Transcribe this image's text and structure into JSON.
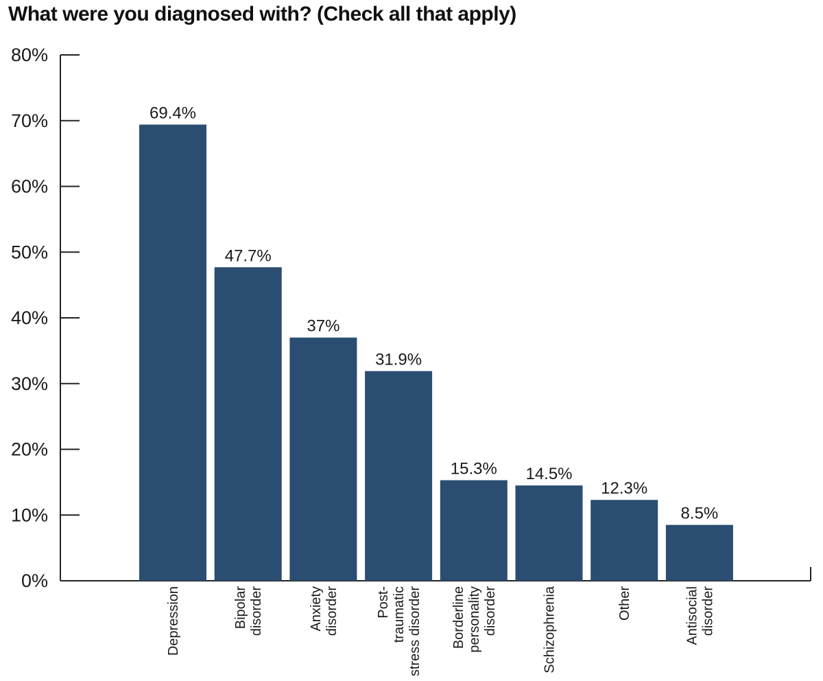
{
  "chart_data": {
    "type": "bar",
    "title": "What were you diagnosed with? (Check all that apply)",
    "xlabel": "",
    "ylabel": "",
    "ylim": [
      0,
      80
    ],
    "yticks": [
      "0%",
      "10%",
      "20%",
      "30%",
      "40%",
      "50%",
      "60%",
      "70%",
      "80%"
    ],
    "grid": false,
    "categories": [
      [
        "Depression"
      ],
      [
        "Bipolar",
        "disorder"
      ],
      [
        "Anxiety",
        "disorder"
      ],
      [
        "Post-",
        "traumatic",
        "stress disorder"
      ],
      [
        "Borderline",
        "personality",
        "disorder"
      ],
      [
        "Schizophrenia"
      ],
      [
        "Other"
      ],
      [
        "Antisocial",
        "disorder"
      ]
    ],
    "values": [
      69.4,
      47.7,
      37,
      31.9,
      15.3,
      14.5,
      12.3,
      8.5
    ],
    "value_labels": [
      "69.4%",
      "47.7%",
      "37%",
      "31.9%",
      "15.3%",
      "14.5%",
      "12.3%",
      "8.5%"
    ],
    "bar_color": "#2b4d72"
  }
}
